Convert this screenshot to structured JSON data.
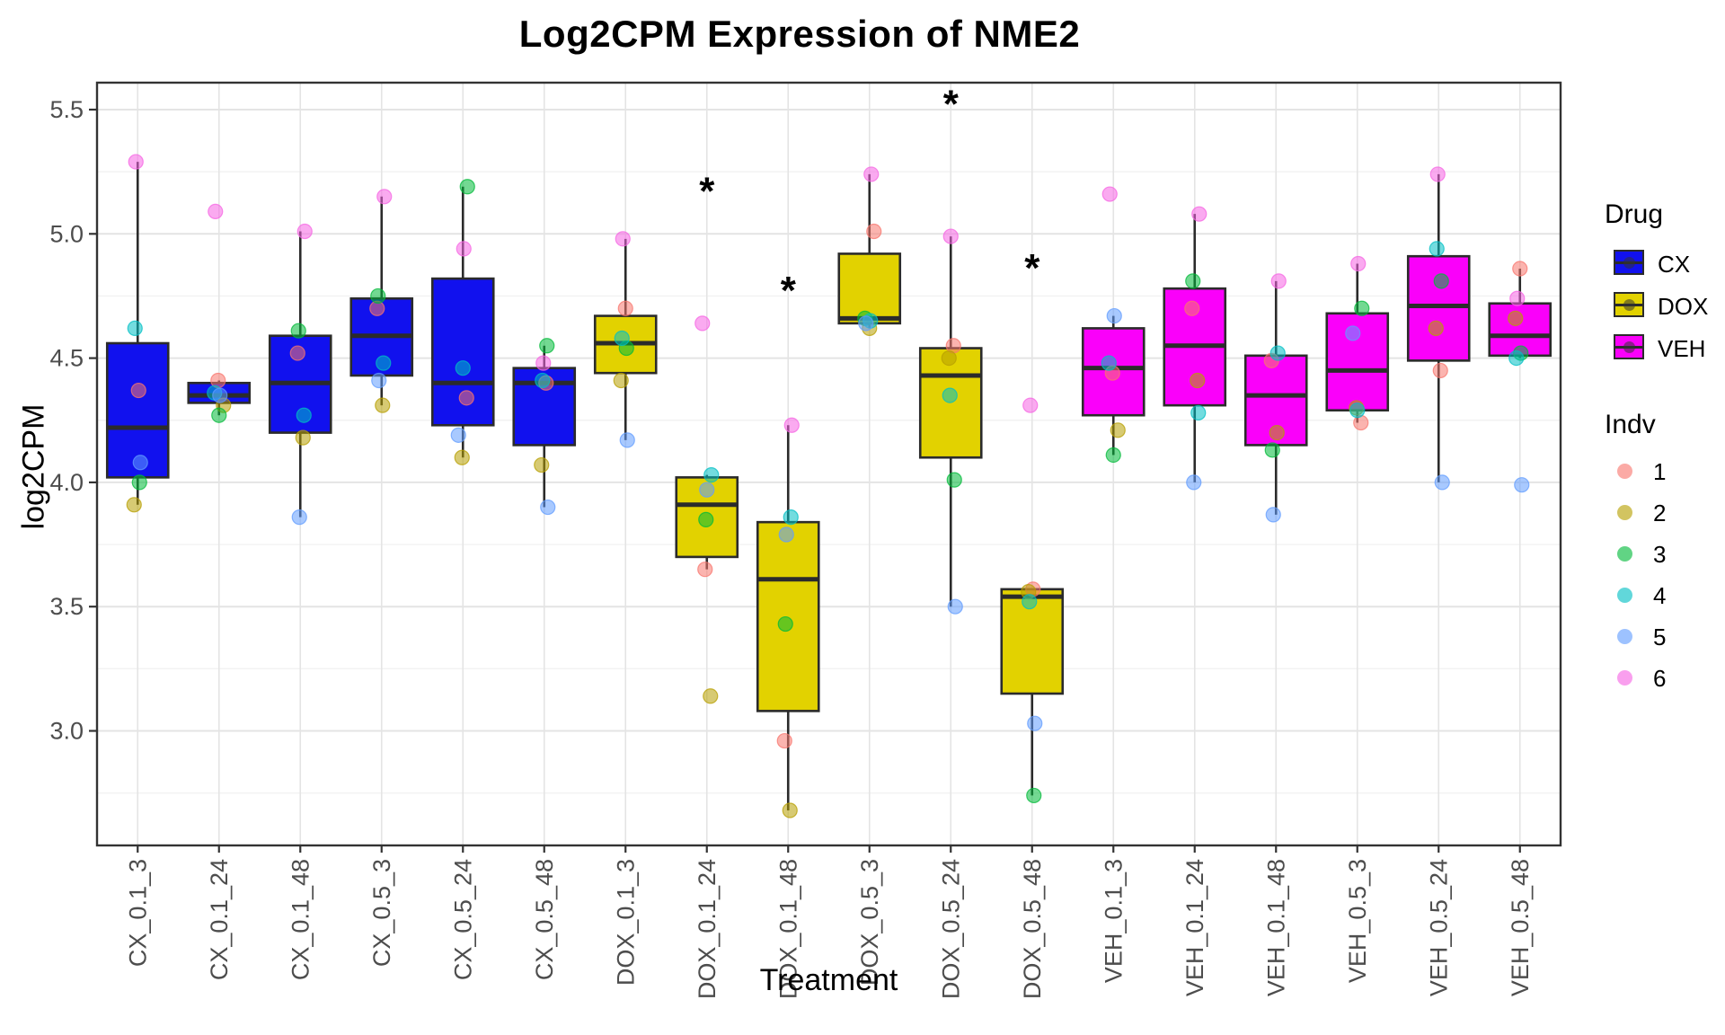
{
  "title": "Log2CPM Expression of NME2",
  "axes": {
    "x_label": "Treatment",
    "y_label": "log2CPM",
    "y_ticks": [
      5.5,
      5.0,
      4.5,
      4.0,
      3.5,
      3.0
    ],
    "y_minor": [
      5.25,
      4.75,
      4.25,
      3.75,
      3.25,
      2.75
    ],
    "ylim": [
      2.54,
      5.61
    ]
  },
  "legend": {
    "drug_title": "Drug",
    "drugs": [
      {
        "label": "CX",
        "color": "#1111EE"
      },
      {
        "label": "DOX",
        "color": "#E2D200"
      },
      {
        "label": "VEH",
        "color": "#FA00FA"
      }
    ],
    "indv_title": "Indv",
    "indv": [
      {
        "label": "1",
        "color": "#F8766D"
      },
      {
        "label": "2",
        "color": "#B79F00"
      },
      {
        "label": "3",
        "color": "#00BA38"
      },
      {
        "label": "4",
        "color": "#00BFC4"
      },
      {
        "label": "5",
        "color": "#619CFF"
      },
      {
        "label": "6",
        "color": "#F564E3"
      }
    ]
  },
  "style": {
    "box_border": "#2b2b2b",
    "panel_border": "#333333",
    "grid_major": "#e4e4e4",
    "grid_minor": "#f2f2f2",
    "tick_label_color": "#4d4d4d",
    "point_opacity": 0.55
  },
  "chart_data": {
    "type": "boxplot",
    "title": "Log2CPM Expression of NME2",
    "xlabel": "Treatment",
    "ylabel": "log2CPM",
    "ylim": [
      2.54,
      5.61
    ],
    "categories": [
      "CX_0.1_3",
      "CX_0.1_24",
      "CX_0.1_48",
      "CX_0.5_3",
      "CX_0.5_24",
      "CX_0.5_48",
      "DOX_0.1_3",
      "DOX_0.1_24",
      "DOX_0.1_48",
      "DOX_0.5_3",
      "DOX_0.5_24",
      "DOX_0.5_48",
      "VEH_0.1_3",
      "VEH_0.1_24",
      "VEH_0.1_48",
      "VEH_0.5_3",
      "VEH_0.5_24",
      "VEH_0.5_48"
    ],
    "groups": [
      {
        "label": "CX_0.1_3",
        "drug": "CX",
        "box": {
          "low": 3.91,
          "q1": 4.02,
          "median": 4.22,
          "q3": 4.56,
          "high": 5.29
        },
        "points": [
          {
            "indv": 1,
            "value": 4.37
          },
          {
            "indv": 2,
            "value": 3.91
          },
          {
            "indv": 3,
            "value": 4.0
          },
          {
            "indv": 4,
            "value": 4.62
          },
          {
            "indv": 5,
            "value": 4.08
          },
          {
            "indv": 6,
            "value": 5.29
          }
        ]
      },
      {
        "label": "CX_0.1_24",
        "drug": "CX",
        "box": {
          "low": 4.27,
          "q1": 4.32,
          "median": 4.35,
          "q3": 4.4,
          "high": 4.41
        },
        "points": [
          {
            "indv": 1,
            "value": 4.41
          },
          {
            "indv": 2,
            "value": 4.31
          },
          {
            "indv": 3,
            "value": 4.27
          },
          {
            "indv": 4,
            "value": 4.36
          },
          {
            "indv": 5,
            "value": 4.35
          },
          {
            "indv": 6,
            "value": 5.09
          }
        ]
      },
      {
        "label": "CX_0.1_48",
        "drug": "CX",
        "box": {
          "low": 3.86,
          "q1": 4.2,
          "median": 4.4,
          "q3": 4.59,
          "high": 5.01
        },
        "points": [
          {
            "indv": 1,
            "value": 4.52
          },
          {
            "indv": 2,
            "value": 4.18
          },
          {
            "indv": 3,
            "value": 4.61
          },
          {
            "indv": 4,
            "value": 4.27
          },
          {
            "indv": 5,
            "value": 3.86
          },
          {
            "indv": 6,
            "value": 5.01
          }
        ]
      },
      {
        "label": "CX_0.5_3",
        "drug": "CX",
        "box": {
          "low": 4.31,
          "q1": 4.43,
          "median": 4.59,
          "q3": 4.74,
          "high": 5.15
        },
        "points": [
          {
            "indv": 1,
            "value": 4.7
          },
          {
            "indv": 2,
            "value": 4.31
          },
          {
            "indv": 3,
            "value": 4.75
          },
          {
            "indv": 4,
            "value": 4.48
          },
          {
            "indv": 5,
            "value": 4.41
          },
          {
            "indv": 6,
            "value": 5.15
          }
        ]
      },
      {
        "label": "CX_0.5_24",
        "drug": "CX",
        "box": {
          "low": 4.1,
          "q1": 4.23,
          "median": 4.4,
          "q3": 4.82,
          "high": 5.19
        },
        "points": [
          {
            "indv": 1,
            "value": 4.34
          },
          {
            "indv": 2,
            "value": 4.1
          },
          {
            "indv": 3,
            "value": 5.19
          },
          {
            "indv": 4,
            "value": 4.46
          },
          {
            "indv": 5,
            "value": 4.19
          },
          {
            "indv": 6,
            "value": 4.94
          }
        ]
      },
      {
        "label": "CX_0.5_48",
        "drug": "CX",
        "box": {
          "low": 3.9,
          "q1": 4.15,
          "median": 4.4,
          "q3": 4.46,
          "high": 4.55
        },
        "points": [
          {
            "indv": 1,
            "value": 4.4
          },
          {
            "indv": 2,
            "value": 4.07
          },
          {
            "indv": 3,
            "value": 4.55
          },
          {
            "indv": 4,
            "value": 4.41
          },
          {
            "indv": 5,
            "value": 3.9
          },
          {
            "indv": 6,
            "value": 4.48
          }
        ]
      },
      {
        "label": "DOX_0.1_3",
        "drug": "DOX",
        "box": {
          "low": 4.17,
          "q1": 4.44,
          "median": 4.56,
          "q3": 4.67,
          "high": 4.98
        },
        "points": [
          {
            "indv": 1,
            "value": 4.7
          },
          {
            "indv": 2,
            "value": 4.41
          },
          {
            "indv": 3,
            "value": 4.54
          },
          {
            "indv": 4,
            "value": 4.58
          },
          {
            "indv": 5,
            "value": 4.17
          },
          {
            "indv": 6,
            "value": 4.98
          }
        ]
      },
      {
        "label": "DOX_0.1_24",
        "drug": "DOX",
        "box": {
          "low": 3.65,
          "q1": 3.7,
          "median": 3.91,
          "q3": 4.02,
          "high": 4.03
        },
        "points": [
          {
            "indv": 1,
            "value": 3.65
          },
          {
            "indv": 2,
            "value": 3.14
          },
          {
            "indv": 3,
            "value": 3.85
          },
          {
            "indv": 4,
            "value": 4.03
          },
          {
            "indv": 5,
            "value": 3.97
          },
          {
            "indv": 6,
            "value": 4.64
          }
        ]
      },
      {
        "label": "DOX_0.1_48",
        "drug": "DOX",
        "box": {
          "low": 2.68,
          "q1": 3.08,
          "median": 3.61,
          "q3": 3.84,
          "high": 4.23
        },
        "points": [
          {
            "indv": 1,
            "value": 2.96
          },
          {
            "indv": 2,
            "value": 2.68
          },
          {
            "indv": 3,
            "value": 3.43
          },
          {
            "indv": 4,
            "value": 3.86
          },
          {
            "indv": 5,
            "value": 3.79
          },
          {
            "indv": 6,
            "value": 4.23
          }
        ]
      },
      {
        "label": "DOX_0.5_3",
        "drug": "DOX",
        "box": {
          "low": 4.62,
          "q1": 4.64,
          "median": 4.66,
          "q3": 4.92,
          "high": 5.24
        },
        "points": [
          {
            "indv": 1,
            "value": 5.01
          },
          {
            "indv": 2,
            "value": 4.62
          },
          {
            "indv": 3,
            "value": 4.66
          },
          {
            "indv": 4,
            "value": 4.65
          },
          {
            "indv": 5,
            "value": 4.64
          },
          {
            "indv": 6,
            "value": 5.24
          }
        ]
      },
      {
        "label": "DOX_0.5_24",
        "drug": "DOX",
        "box": {
          "low": 3.5,
          "q1": 4.1,
          "median": 4.43,
          "q3": 4.54,
          "high": 4.99
        },
        "points": [
          {
            "indv": 1,
            "value": 4.55
          },
          {
            "indv": 2,
            "value": 4.5
          },
          {
            "indv": 3,
            "value": 4.01
          },
          {
            "indv": 4,
            "value": 4.35
          },
          {
            "indv": 5,
            "value": 3.5
          },
          {
            "indv": 6,
            "value": 4.99
          }
        ]
      },
      {
        "label": "DOX_0.5_48",
        "drug": "DOX",
        "box": {
          "low": 2.74,
          "q1": 3.15,
          "median": 3.54,
          "q3": 3.57,
          "high": 3.57
        },
        "points": [
          {
            "indv": 1,
            "value": 3.57
          },
          {
            "indv": 2,
            "value": 3.56
          },
          {
            "indv": 3,
            "value": 2.74
          },
          {
            "indv": 4,
            "value": 3.52
          },
          {
            "indv": 5,
            "value": 3.03
          },
          {
            "indv": 6,
            "value": 4.31
          }
        ]
      },
      {
        "label": "VEH_0.1_3",
        "drug": "VEH",
        "box": {
          "low": 4.11,
          "q1": 4.27,
          "median": 4.46,
          "q3": 4.62,
          "high": 4.67
        },
        "points": [
          {
            "indv": 1,
            "value": 4.44
          },
          {
            "indv": 2,
            "value": 4.21
          },
          {
            "indv": 3,
            "value": 4.11
          },
          {
            "indv": 4,
            "value": 4.48
          },
          {
            "indv": 5,
            "value": 4.67
          },
          {
            "indv": 6,
            "value": 5.16
          }
        ]
      },
      {
        "label": "VEH_0.1_24",
        "drug": "VEH",
        "box": {
          "low": 4.0,
          "q1": 4.31,
          "median": 4.55,
          "q3": 4.78,
          "high": 5.08
        },
        "points": [
          {
            "indv": 1,
            "value": 4.7
          },
          {
            "indv": 2,
            "value": 4.41
          },
          {
            "indv": 3,
            "value": 4.81
          },
          {
            "indv": 4,
            "value": 4.28
          },
          {
            "indv": 5,
            "value": 4.0
          },
          {
            "indv": 6,
            "value": 5.08
          }
        ]
      },
      {
        "label": "VEH_0.1_48",
        "drug": "VEH",
        "box": {
          "low": 3.87,
          "q1": 4.15,
          "median": 4.35,
          "q3": 4.51,
          "high": 4.81
        },
        "points": [
          {
            "indv": 1,
            "value": 4.49
          },
          {
            "indv": 2,
            "value": 4.2
          },
          {
            "indv": 3,
            "value": 4.13
          },
          {
            "indv": 4,
            "value": 4.52
          },
          {
            "indv": 5,
            "value": 3.87
          },
          {
            "indv": 6,
            "value": 4.81
          }
        ]
      },
      {
        "label": "VEH_0.5_3",
        "drug": "VEH",
        "box": {
          "low": 4.24,
          "q1": 4.29,
          "median": 4.45,
          "q3": 4.68,
          "high": 4.88
        },
        "points": [
          {
            "indv": 1,
            "value": 4.24
          },
          {
            "indv": 2,
            "value": 4.3
          },
          {
            "indv": 3,
            "value": 4.7
          },
          {
            "indv": 4,
            "value": 4.29
          },
          {
            "indv": 5,
            "value": 4.6
          },
          {
            "indv": 6,
            "value": 4.88
          }
        ]
      },
      {
        "label": "VEH_0.5_24",
        "drug": "VEH",
        "box": {
          "low": 4.0,
          "q1": 4.49,
          "median": 4.71,
          "q3": 4.91,
          "high": 5.24
        },
        "points": [
          {
            "indv": 1,
            "value": 4.45
          },
          {
            "indv": 2,
            "value": 4.62
          },
          {
            "indv": 3,
            "value": 4.81
          },
          {
            "indv": 4,
            "value": 4.94
          },
          {
            "indv": 5,
            "value": 4.0
          },
          {
            "indv": 6,
            "value": 5.24
          }
        ]
      },
      {
        "label": "VEH_0.5_48",
        "drug": "VEH",
        "box": {
          "low": 4.5,
          "q1": 4.51,
          "median": 4.59,
          "q3": 4.72,
          "high": 4.86
        },
        "points": [
          {
            "indv": 1,
            "value": 4.86
          },
          {
            "indv": 2,
            "value": 4.66
          },
          {
            "indv": 3,
            "value": 4.52
          },
          {
            "indv": 4,
            "value": 4.5
          },
          {
            "indv": 5,
            "value": 3.99
          },
          {
            "indv": 6,
            "value": 4.74
          }
        ]
      }
    ],
    "significance_marks": [
      {
        "category": "DOX_0.1_24",
        "symbol": "*",
        "value": 5.17
      },
      {
        "category": "DOX_0.1_48",
        "symbol": "*",
        "value": 4.77
      },
      {
        "category": "DOX_0.5_24",
        "symbol": "*",
        "value": 5.52
      },
      {
        "category": "DOX_0.5_48",
        "symbol": "*",
        "value": 4.86
      }
    ],
    "legend_position": "right",
    "grid": true
  }
}
